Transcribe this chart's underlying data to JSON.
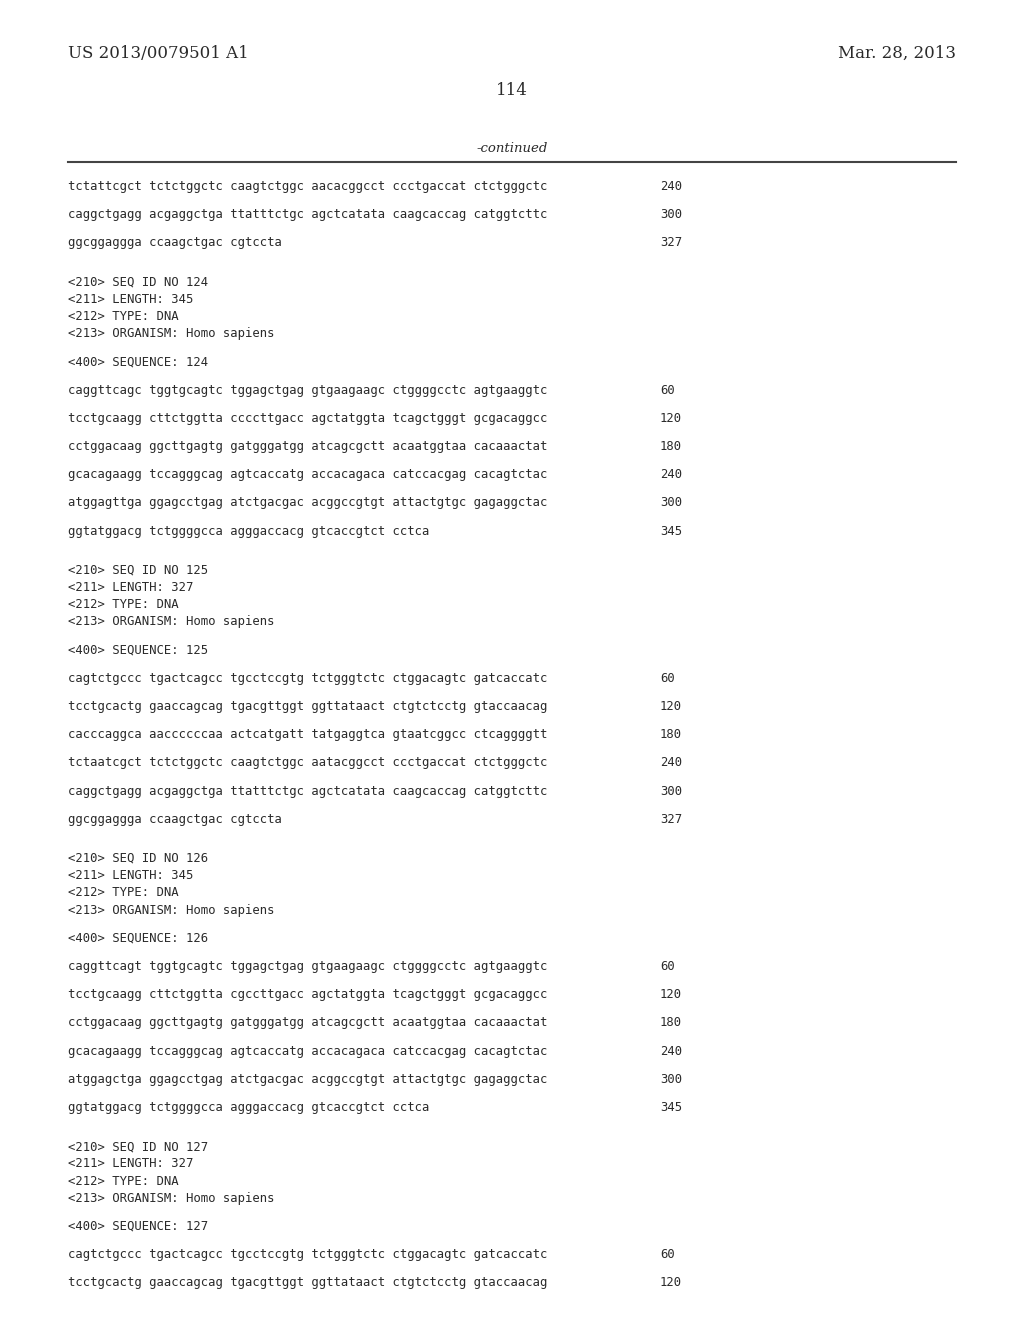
{
  "bg_color": "#ffffff",
  "header_left": "US 2013/0079501 A1",
  "header_right": "Mar. 28, 2013",
  "page_number": "114",
  "continued_label": "-continued",
  "font_size_header": 12.0,
  "font_size_mono": 8.8,
  "content": [
    {
      "type": "seq_line",
      "text": "tctattcgct tctctggctc caagtctggc aacacggcct ccctgaccat ctctgggctc",
      "num": "240"
    },
    {
      "type": "blank"
    },
    {
      "type": "seq_line",
      "text": "caggctgagg acgaggctga ttatttctgc agctcatata caagcaccag catggtcttc",
      "num": "300"
    },
    {
      "type": "blank"
    },
    {
      "type": "seq_line",
      "text": "ggcggaggga ccaagctgac cgtccta",
      "num": "327"
    },
    {
      "type": "blank"
    },
    {
      "type": "blank"
    },
    {
      "type": "meta",
      "text": "<210> SEQ ID NO 124"
    },
    {
      "type": "meta",
      "text": "<211> LENGTH: 345"
    },
    {
      "type": "meta",
      "text": "<212> TYPE: DNA"
    },
    {
      "type": "meta",
      "text": "<213> ORGANISM: Homo sapiens"
    },
    {
      "type": "blank"
    },
    {
      "type": "meta",
      "text": "<400> SEQUENCE: 124"
    },
    {
      "type": "blank"
    },
    {
      "type": "seq_line",
      "text": "caggttcagc tggtgcagtc tggagctgag gtgaagaagc ctggggcctc agtgaaggtc",
      "num": "60"
    },
    {
      "type": "blank"
    },
    {
      "type": "seq_line",
      "text": "tcctgcaagg cttctggtta ccccttgacc agctatggta tcagctgggt gcgacaggcc",
      "num": "120"
    },
    {
      "type": "blank"
    },
    {
      "type": "seq_line",
      "text": "cctggacaag ggcttgagtg gatgggatgg atcagcgctt acaatggtaa cacaaactat",
      "num": "180"
    },
    {
      "type": "blank"
    },
    {
      "type": "seq_line",
      "text": "gcacagaagg tccagggcag agtcaccatg accacagaca catccacgag cacagtctac",
      "num": "240"
    },
    {
      "type": "blank"
    },
    {
      "type": "seq_line",
      "text": "atggagttga ggagcctgag atctgacgac acggccgtgt attactgtgc gagaggctac",
      "num": "300"
    },
    {
      "type": "blank"
    },
    {
      "type": "seq_line",
      "text": "ggtatggacg tctggggcca agggaccacg gtcaccgtct cctca",
      "num": "345"
    },
    {
      "type": "blank"
    },
    {
      "type": "blank"
    },
    {
      "type": "meta",
      "text": "<210> SEQ ID NO 125"
    },
    {
      "type": "meta",
      "text": "<211> LENGTH: 327"
    },
    {
      "type": "meta",
      "text": "<212> TYPE: DNA"
    },
    {
      "type": "meta",
      "text": "<213> ORGANISM: Homo sapiens"
    },
    {
      "type": "blank"
    },
    {
      "type": "meta",
      "text": "<400> SEQUENCE: 125"
    },
    {
      "type": "blank"
    },
    {
      "type": "seq_line",
      "text": "cagtctgccc tgactcagcc tgcctccgtg tctgggtctc ctggacagtc gatcaccatc",
      "num": "60"
    },
    {
      "type": "blank"
    },
    {
      "type": "seq_line",
      "text": "tcctgcactg gaaccagcag tgacgttggt ggttataact ctgtctcctg gtaccaacag",
      "num": "120"
    },
    {
      "type": "blank"
    },
    {
      "type": "seq_line",
      "text": "cacccaggca aaccccccaa actcatgatt tatgaggtca gtaatcggcc ctcaggggtt",
      "num": "180"
    },
    {
      "type": "blank"
    },
    {
      "type": "seq_line",
      "text": "tctaatcgct tctctggctc caagtctggc aatacggcct ccctgaccat ctctgggctc",
      "num": "240"
    },
    {
      "type": "blank"
    },
    {
      "type": "seq_line",
      "text": "caggctgagg acgaggctga ttatttctgc agctcatata caagcaccag catggtcttc",
      "num": "300"
    },
    {
      "type": "blank"
    },
    {
      "type": "seq_line",
      "text": "ggcggaggga ccaagctgac cgtccta",
      "num": "327"
    },
    {
      "type": "blank"
    },
    {
      "type": "blank"
    },
    {
      "type": "meta",
      "text": "<210> SEQ ID NO 126"
    },
    {
      "type": "meta",
      "text": "<211> LENGTH: 345"
    },
    {
      "type": "meta",
      "text": "<212> TYPE: DNA"
    },
    {
      "type": "meta",
      "text": "<213> ORGANISM: Homo sapiens"
    },
    {
      "type": "blank"
    },
    {
      "type": "meta",
      "text": "<400> SEQUENCE: 126"
    },
    {
      "type": "blank"
    },
    {
      "type": "seq_line",
      "text": "caggttcagt tggtgcagtc tggagctgag gtgaagaagc ctggggcctc agtgaaggtc",
      "num": "60"
    },
    {
      "type": "blank"
    },
    {
      "type": "seq_line",
      "text": "tcctgcaagg cttctggtta cgccttgacc agctatggta tcagctgggt gcgacaggcc",
      "num": "120"
    },
    {
      "type": "blank"
    },
    {
      "type": "seq_line",
      "text": "cctggacaag ggcttgagtg gatgggatgg atcagcgctt acaatggtaa cacaaactat",
      "num": "180"
    },
    {
      "type": "blank"
    },
    {
      "type": "seq_line",
      "text": "gcacagaagg tccagggcag agtcaccatg accacagaca catccacgag cacagtctac",
      "num": "240"
    },
    {
      "type": "blank"
    },
    {
      "type": "seq_line",
      "text": "atggagctga ggagcctgag atctgacgac acggccgtgt attactgtgc gagaggctac",
      "num": "300"
    },
    {
      "type": "blank"
    },
    {
      "type": "seq_line",
      "text": "ggtatggacg tctggggcca agggaccacg gtcaccgtct cctca",
      "num": "345"
    },
    {
      "type": "blank"
    },
    {
      "type": "blank"
    },
    {
      "type": "meta",
      "text": "<210> SEQ ID NO 127"
    },
    {
      "type": "meta",
      "text": "<211> LENGTH: 327"
    },
    {
      "type": "meta",
      "text": "<212> TYPE: DNA"
    },
    {
      "type": "meta",
      "text": "<213> ORGANISM: Homo sapiens"
    },
    {
      "type": "blank"
    },
    {
      "type": "meta",
      "text": "<400> SEQUENCE: 127"
    },
    {
      "type": "blank"
    },
    {
      "type": "seq_line",
      "text": "cagtctgccc tgactcagcc tgcctccgtg tctgggtctc ctggacagtc gatcaccatc",
      "num": "60"
    },
    {
      "type": "blank"
    },
    {
      "type": "seq_line",
      "text": "tcctgcactg gaaccagcag tgacgttggt ggttataact ctgtctcctg gtaccaacag",
      "num": "120"
    }
  ]
}
